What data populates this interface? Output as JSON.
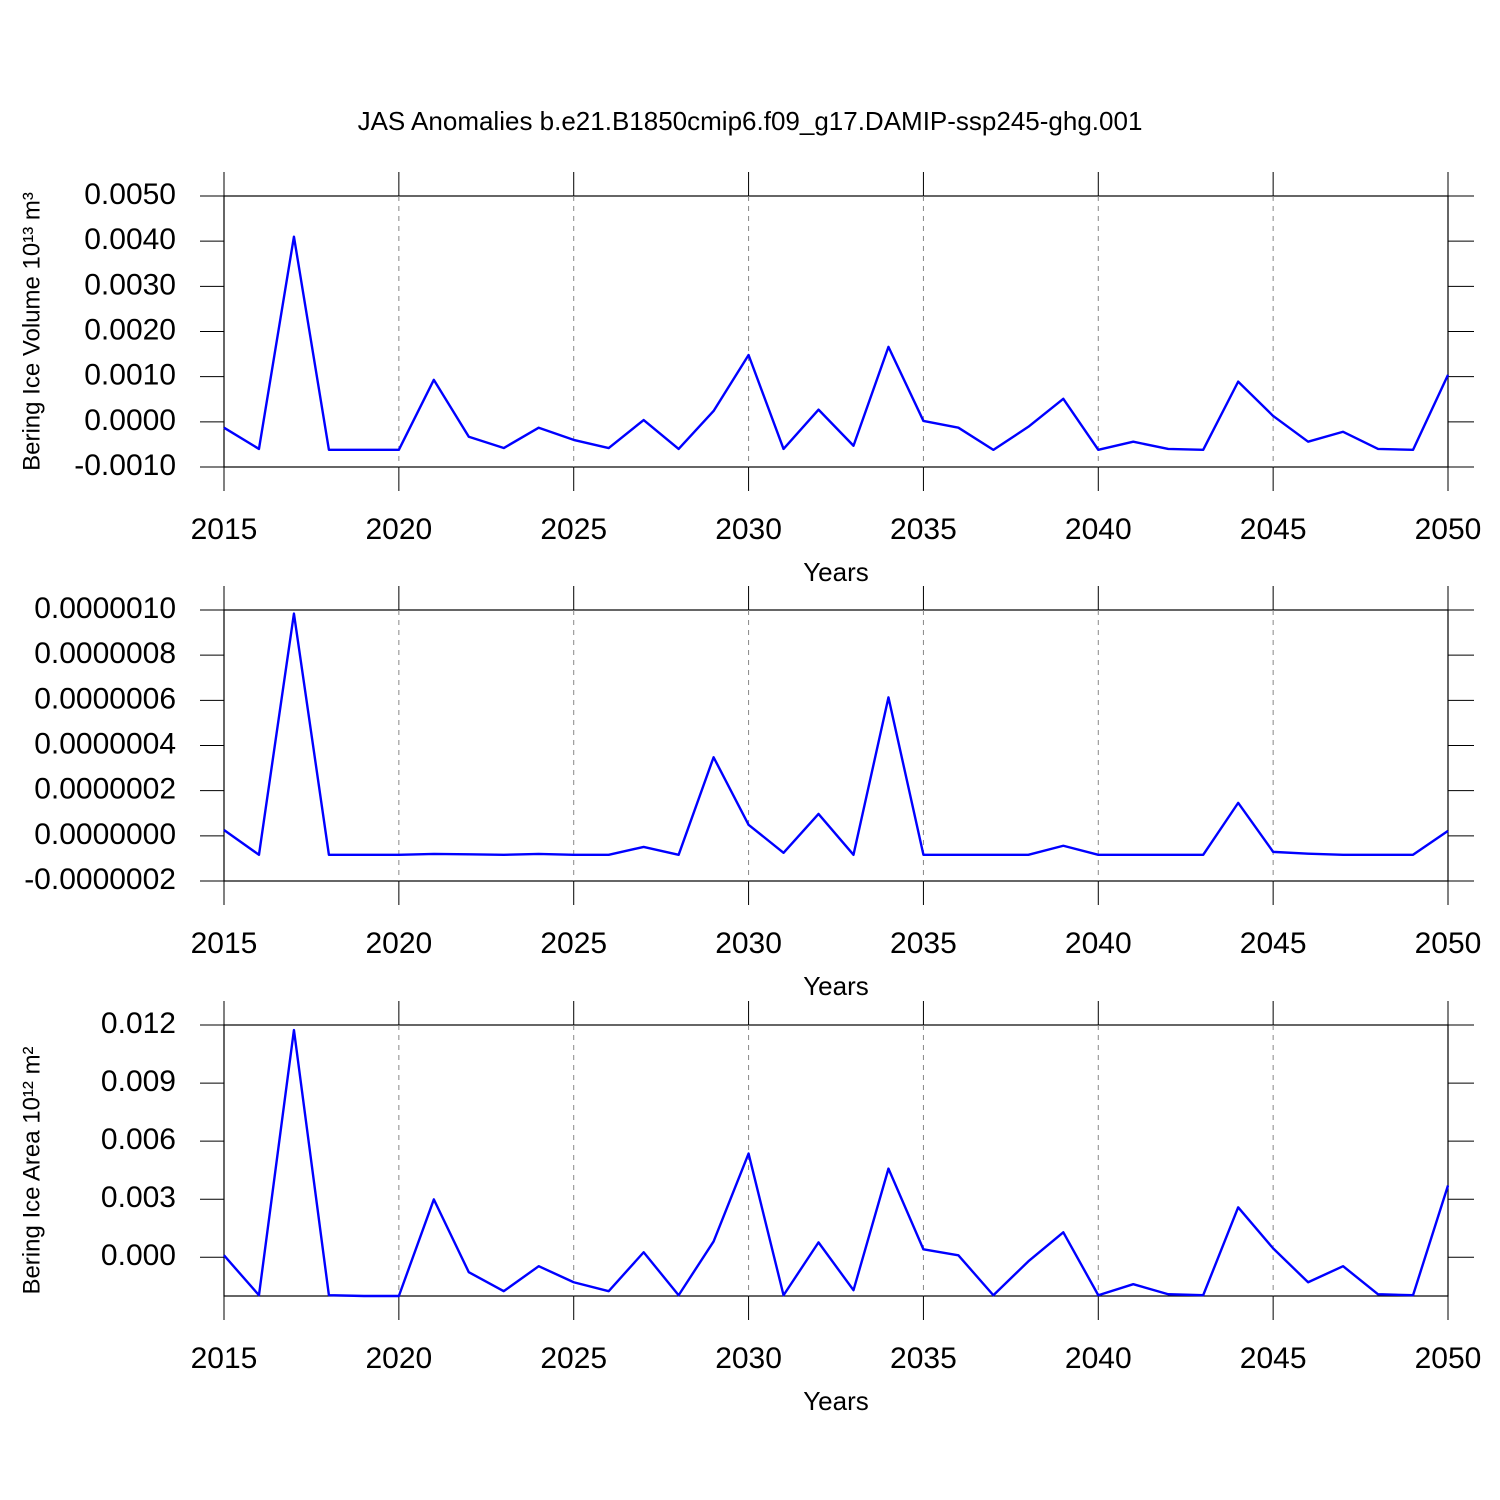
{
  "chart_data": [
    {
      "type": "line",
      "title": "JAS Anomalies b.e21.B1850cmip6.f09_g17.DAMIP-ssp245-ghg.001",
      "ylabel": "Bering Ice Volume 10¹³ m³",
      "xlabel": "Years",
      "color": "#0000ff",
      "grid": "x",
      "x": [
        2015,
        2016,
        2017,
        2018,
        2019,
        2020,
        2021,
        2022,
        2023,
        2024,
        2025,
        2026,
        2027,
        2028,
        2029,
        2030,
        2031,
        2032,
        2033,
        2034,
        2035,
        2036,
        2037,
        2038,
        2039,
        2040,
        2041,
        2042,
        2043,
        2044,
        2045,
        2046,
        2047,
        2048,
        2049,
        2050
      ],
      "values": [
        -0.00013,
        -0.0006,
        0.0041,
        -0.00062,
        -0.00062,
        -0.00062,
        0.00093,
        -0.00033,
        -0.00058,
        -0.00013,
        -0.0004,
        -0.00058,
        4e-05,
        -0.0006,
        0.00024,
        0.00148,
        -0.0006,
        0.00027,
        -0.00053,
        0.00166,
        2e-05,
        -0.00013,
        -0.00062,
        -0.00011,
        0.00051,
        -0.00062,
        -0.00044,
        -0.0006,
        -0.00062,
        0.00089,
        0.00013,
        -0.00044,
        -0.00022,
        -0.0006,
        -0.00062,
        0.00104
      ],
      "xlim": [
        2015,
        2050
      ],
      "xticks": [
        2015,
        2020,
        2025,
        2030,
        2035,
        2040,
        2045,
        2050
      ],
      "ylim": [
        -0.001,
        0.005
      ],
      "yticks": [
        {
          "value": -0.001,
          "label": "-0.0010"
        },
        {
          "value": 0,
          "label": "0.0000"
        },
        {
          "value": 0.001,
          "label": "0.0010"
        },
        {
          "value": 0.002,
          "label": "0.0020"
        },
        {
          "value": 0.003,
          "label": "0.0030"
        },
        {
          "value": 0.004,
          "label": "0.0040"
        },
        {
          "value": 0.005,
          "label": "0.0050"
        }
      ]
    },
    {
      "type": "line",
      "xlabel": "Years",
      "color": "#0000ff",
      "grid": "x",
      "x": [
        2015,
        2016,
        2017,
        2018,
        2019,
        2020,
        2021,
        2022,
        2023,
        2024,
        2025,
        2026,
        2027,
        2028,
        2029,
        2030,
        2031,
        2032,
        2033,
        2034,
        2035,
        2036,
        2037,
        2038,
        2039,
        2040,
        2041,
        2042,
        2043,
        2044,
        2045,
        2046,
        2047,
        2048,
        2049,
        2050
      ],
      "values": [
        2.6e-08,
        -8.4e-08,
        9.84e-07,
        -8.4e-08,
        -8.4e-08,
        -8.4e-08,
        -8e-08,
        -8.2e-08,
        -8.4e-08,
        -8e-08,
        -8.4e-08,
        -8.4e-08,
        -4.9e-08,
        -8.4e-08,
        3.48e-07,
        4.9e-08,
        -7.5e-08,
        9.7e-08,
        -8.4e-08,
        6.13e-07,
        -8.4e-08,
        -8.4e-08,
        -8.4e-08,
        -8.4e-08,
        -4.4e-08,
        -8.4e-08,
        -8.4e-08,
        -8.4e-08,
        -8.4e-08,
        1.46e-07,
        -7.1e-08,
        -7.9e-08,
        -8.4e-08,
        -8.4e-08,
        -8.4e-08,
        2.2e-08
      ],
      "xlim": [
        2015,
        2050
      ],
      "xticks": [
        2015,
        2020,
        2025,
        2030,
        2035,
        2040,
        2045,
        2050
      ],
      "ylim": [
        -2e-07,
        1e-06
      ],
      "yticks": [
        {
          "value": -2e-07,
          "label": "-0.0000002"
        },
        {
          "value": 0,
          "label": "0.0000000"
        },
        {
          "value": 2e-07,
          "label": "0.0000002"
        },
        {
          "value": 4e-07,
          "label": "0.0000004"
        },
        {
          "value": 6e-07,
          "label": "0.0000006"
        },
        {
          "value": 8e-07,
          "label": "0.0000008"
        },
        {
          "value": 1e-06,
          "label": "0.0000010"
        }
      ]
    },
    {
      "type": "line",
      "ylabel": "Bering Ice Area 10¹² m²",
      "xlabel": "Years",
      "color": "#0000ff",
      "grid": "x",
      "x": [
        2015,
        2016,
        2017,
        2018,
        2019,
        2020,
        2021,
        2022,
        2023,
        2024,
        2025,
        2026,
        2027,
        2028,
        2029,
        2030,
        2031,
        2032,
        2033,
        2034,
        2035,
        2036,
        2037,
        2038,
        2039,
        2040,
        2041,
        2042,
        2043,
        2044,
        2045,
        2046,
        2047,
        2048,
        2049,
        2050
      ],
      "values": [
        0.0001,
        -0.00196,
        0.01174,
        -0.00196,
        -0.002,
        -0.002,
        0.00299,
        -0.00077,
        -0.00175,
        -0.00046,
        -0.00129,
        -0.00175,
        0.00026,
        -0.00196,
        0.00082,
        0.00536,
        -0.00196,
        0.00077,
        -0.0017,
        0.00458,
        0.00041,
        0.0001,
        -0.00196,
        -0.00021,
        0.00129,
        -0.00196,
        -0.00139,
        -0.00191,
        -0.00196,
        0.00258,
        0.00046,
        -0.00129,
        -0.00046,
        -0.00191,
        -0.00196,
        0.00371
      ],
      "xlim": [
        2015,
        2050
      ],
      "xticks": [
        2015,
        2020,
        2025,
        2030,
        2035,
        2040,
        2045,
        2050
      ],
      "ylim": [
        -0.002,
        0.012
      ],
      "yticks": [
        {
          "value": 0,
          "label": "0.000"
        },
        0.003,
        0.006,
        0.009,
        0.012
      ]
    }
  ]
}
